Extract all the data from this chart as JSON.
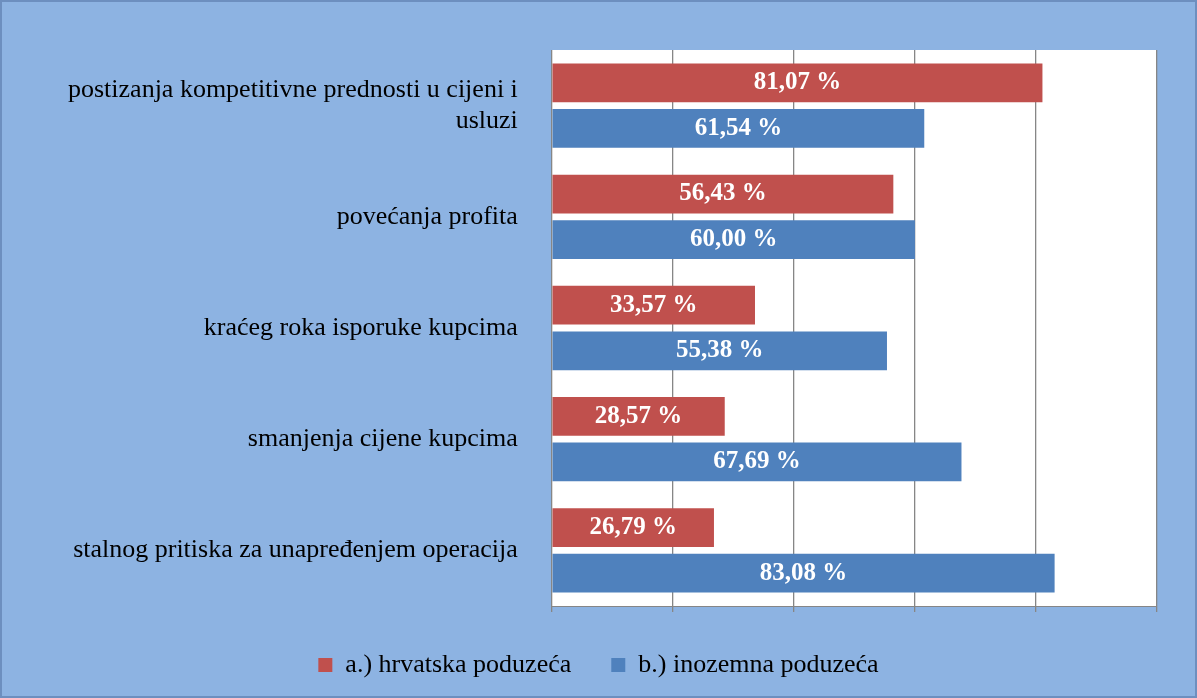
{
  "chart_data": {
    "type": "bar",
    "orientation": "horizontal",
    "categories": [
      "postizanja kompetitivne prednosti u cijeni i usluzi",
      "povećanja profita",
      "kraćeg roka isporuke kupcima",
      "smanjenja cijene kupcima",
      "stalnog pritiska za unapređenjem operacija"
    ],
    "series": [
      {
        "name": "a.) hrvatska poduzeća",
        "color": "#c0504d",
        "values": [
          81.07,
          56.43,
          33.57,
          28.57,
          26.79
        ],
        "value_labels": [
          "81,07 %",
          "56,43 %",
          "33,57 %",
          "28,57 %",
          "26,79 %"
        ]
      },
      {
        "name": "b.) inozemna poduzeća",
        "color": "#4f81bd",
        "values": [
          61.54,
          60.0,
          55.38,
          67.69,
          83.08
        ],
        "value_labels": [
          "61,54 %",
          "60,00 %",
          "55,38 %",
          "67,69 %",
          "83,08 %"
        ]
      }
    ],
    "xlim": [
      0,
      100
    ],
    "xticks": [
      {
        "value": 0,
        "label": null
      },
      {
        "value": 20,
        "label": null
      },
      {
        "value": 40,
        "label": null
      },
      {
        "value": 60,
        "label": null
      },
      {
        "value": 80,
        "label": null
      },
      {
        "value": 100,
        "label": null
      }
    ],
    "tick_labels": "y",
    "grid": "x",
    "legend": "bottom"
  }
}
